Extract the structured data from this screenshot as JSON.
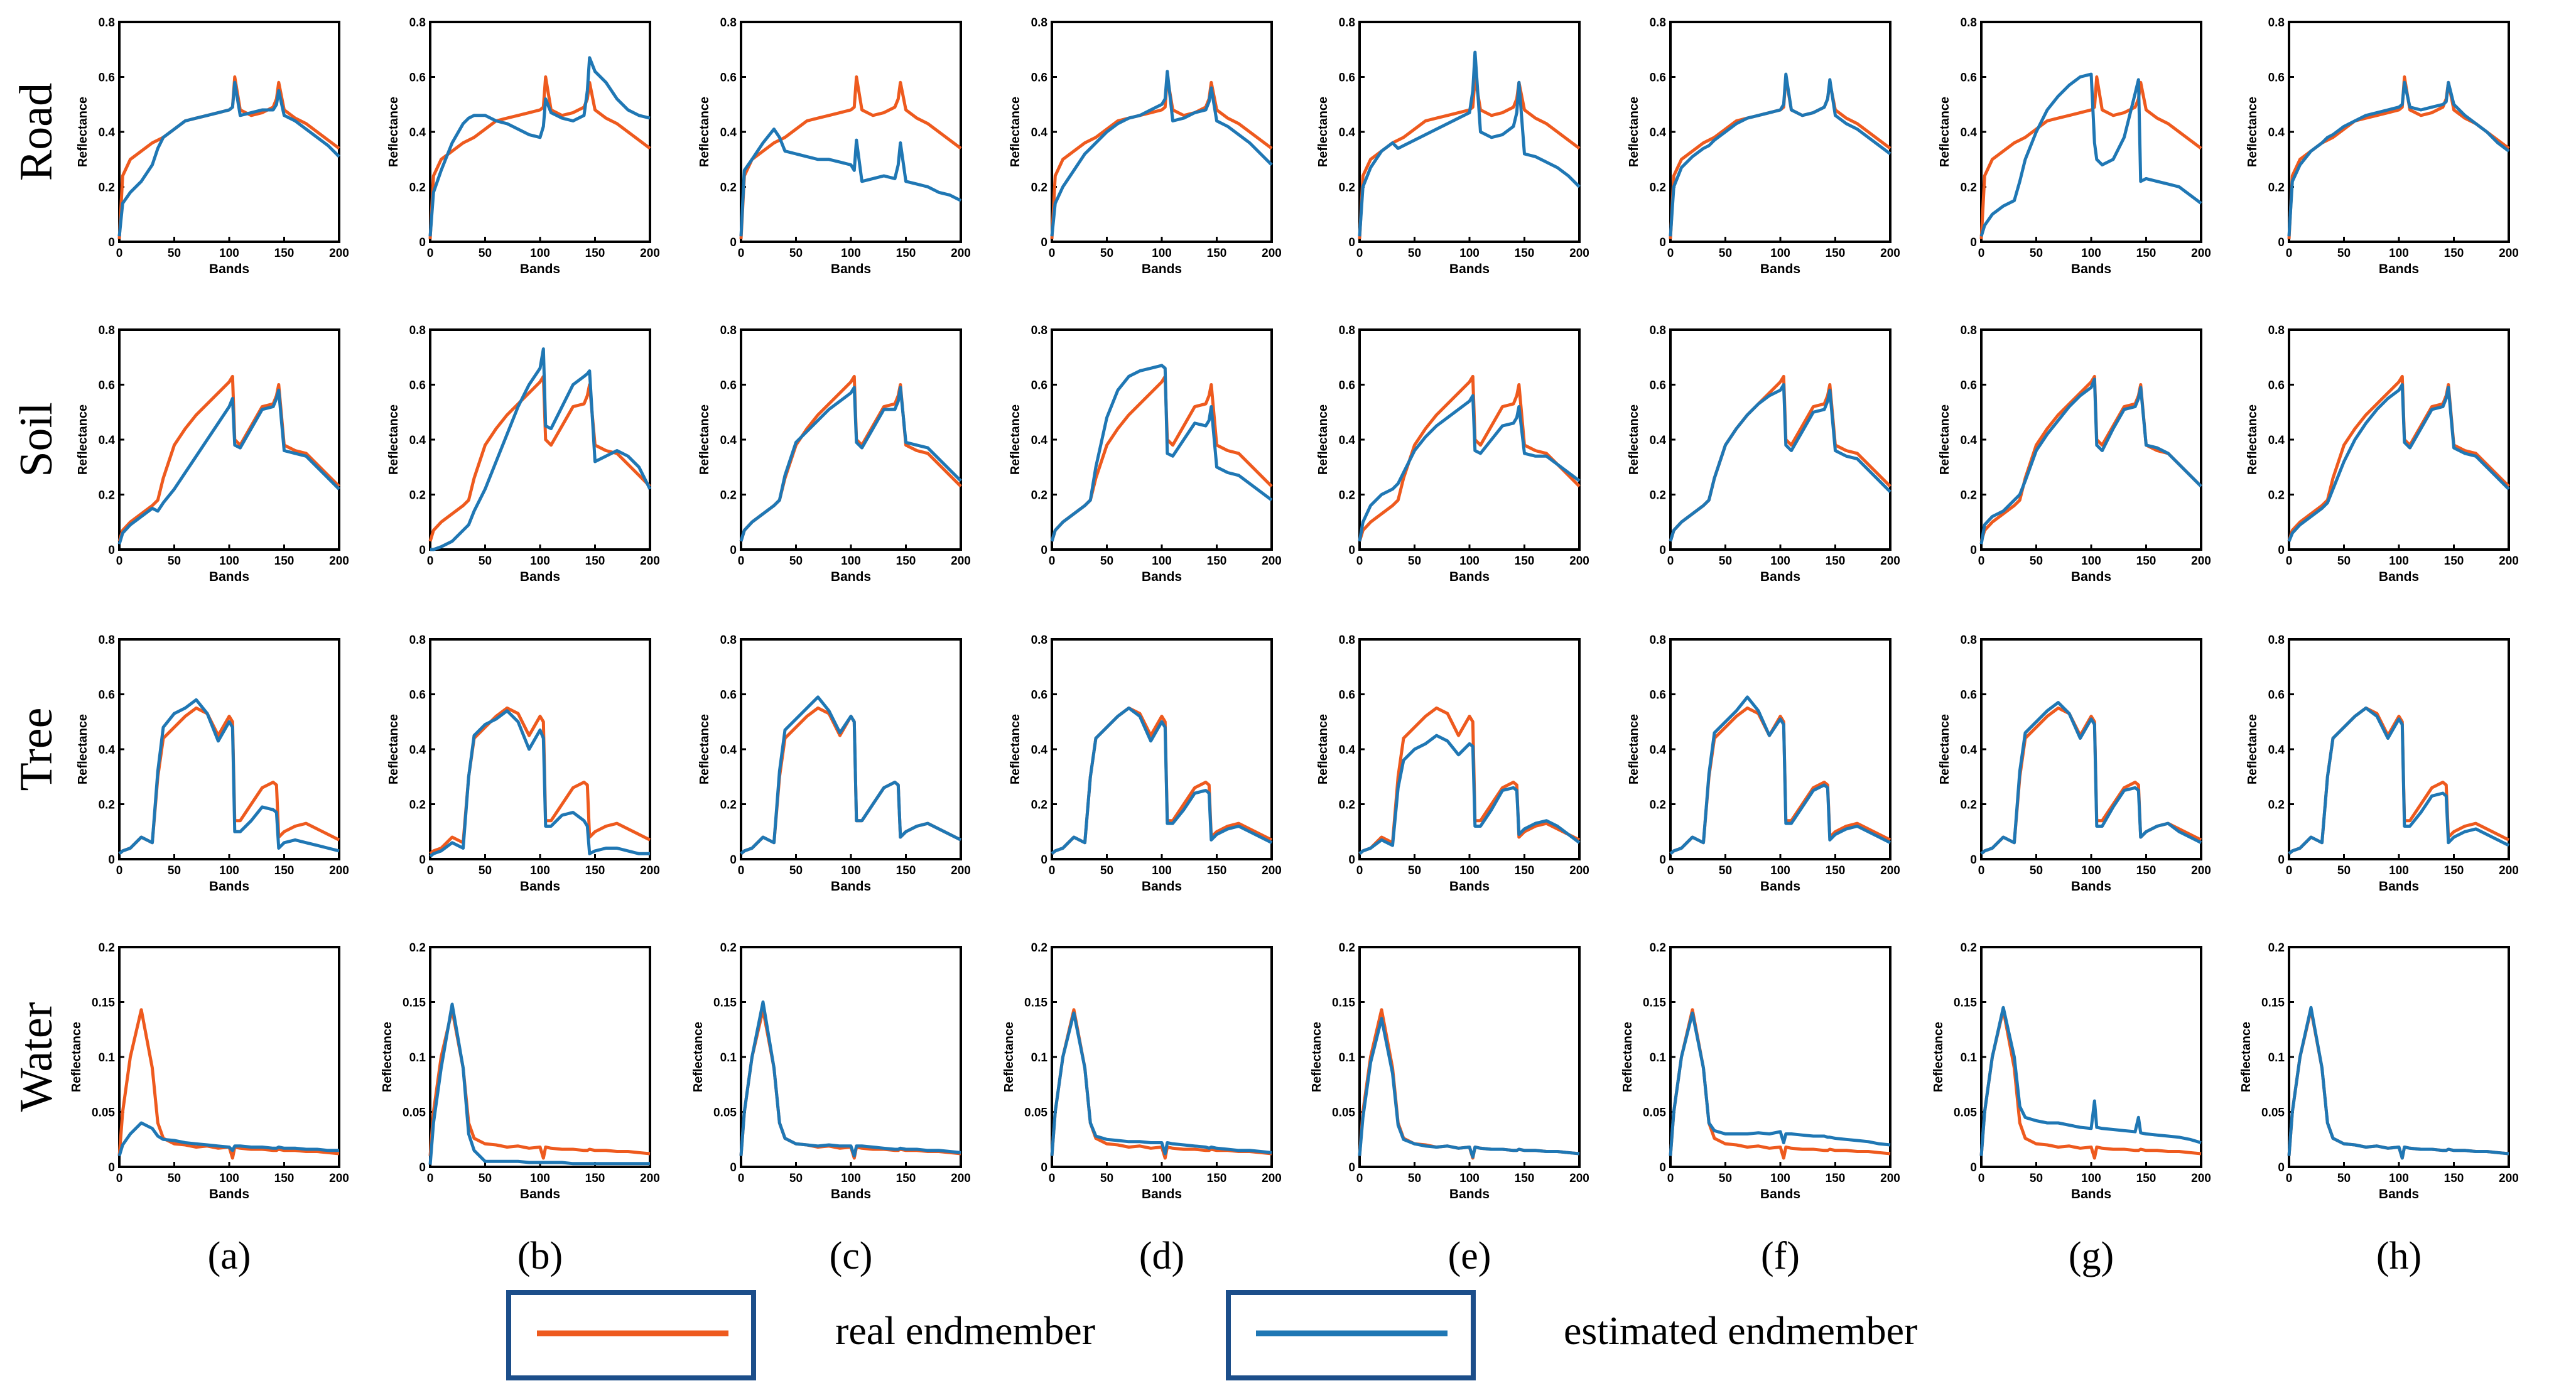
{
  "colors": {
    "real": "#EE5A1E",
    "estimated": "#1F77B4",
    "legend_border": "#1C4E8A",
    "axis": "#000000"
  },
  "legend": {
    "real_label": "real endmember",
    "estimated_label": "estimated endmember"
  },
  "column_labels": [
    "(a)",
    "(b)",
    "(c)",
    "(d)",
    "(e)",
    "(f)",
    "(g)",
    "(h)"
  ],
  "chart_data": {
    "type": "line",
    "layout": "grid 4 rows x 8 columns of line plots",
    "xlabel": "Bands",
    "ylabel": "Reflectance",
    "xlim": [
      0,
      200
    ],
    "xticks": [
      0,
      50,
      100,
      150,
      200
    ],
    "rows": [
      {
        "name": "Road",
        "ylim": [
          0,
          0.8
        ],
        "yticks": [
          0,
          0.2,
          0.4,
          0.6,
          0.8
        ],
        "ytick_labels": [
          "0",
          "0.2",
          "0.4",
          "0.6",
          "0.8"
        ]
      },
      {
        "name": "Soil",
        "ylim": [
          0,
          0.8
        ],
        "yticks": [
          0,
          0.2,
          0.4,
          0.6,
          0.8
        ],
        "ytick_labels": [
          "0",
          "0.2",
          "0.4",
          "0.6",
          "0.8"
        ]
      },
      {
        "name": "Tree",
        "ylim": [
          0,
          0.8
        ],
        "yticks": [
          0,
          0.2,
          0.4,
          0.6,
          0.8
        ],
        "ytick_labels": [
          "0",
          "0.2",
          "0.4",
          "0.6",
          "0.8"
        ]
      },
      {
        "name": "Water",
        "ylim": [
          0,
          0.2
        ],
        "yticks": [
          0,
          0.05,
          0.1,
          0.15,
          0.2
        ],
        "ytick_labels": [
          "0",
          "0.05",
          "0.1",
          "0.15",
          "0.2"
        ]
      }
    ],
    "x": [
      0,
      3,
      10,
      20,
      30,
      35,
      40,
      50,
      60,
      70,
      80,
      90,
      100,
      103,
      105,
      110,
      120,
      130,
      140,
      143,
      145,
      150,
      160,
      170,
      180,
      190,
      200
    ],
    "real": {
      "Road": [
        0.01,
        0.24,
        0.3,
        0.33,
        0.36,
        0.37,
        0.38,
        0.41,
        0.44,
        0.45,
        0.46,
        0.47,
        0.48,
        0.49,
        0.6,
        0.48,
        0.46,
        0.47,
        0.49,
        0.52,
        0.58,
        0.48,
        0.45,
        0.43,
        0.4,
        0.37,
        0.34
      ],
      "Soil": [
        0.03,
        0.07,
        0.1,
        0.13,
        0.16,
        0.18,
        0.26,
        0.38,
        0.44,
        0.49,
        0.53,
        0.57,
        0.61,
        0.63,
        0.4,
        0.38,
        0.45,
        0.52,
        0.53,
        0.56,
        0.6,
        0.38,
        0.36,
        0.35,
        0.31,
        0.27,
        0.23
      ],
      "Tree": [
        0.02,
        0.03,
        0.04,
        0.08,
        0.06,
        0.3,
        0.44,
        0.48,
        0.52,
        0.55,
        0.53,
        0.45,
        0.52,
        0.5,
        0.14,
        0.14,
        0.2,
        0.26,
        0.28,
        0.27,
        0.08,
        0.1,
        0.12,
        0.13,
        0.11,
        0.09,
        0.07
      ],
      "Water": [
        0.01,
        0.05,
        0.1,
        0.143,
        0.09,
        0.04,
        0.026,
        0.021,
        0.02,
        0.018,
        0.019,
        0.017,
        0.018,
        0.008,
        0.018,
        0.017,
        0.016,
        0.016,
        0.015,
        0.015,
        0.016,
        0.015,
        0.015,
        0.014,
        0.014,
        0.013,
        0.012
      ]
    },
    "estimated": [
      {
        "Road": [
          0.02,
          0.14,
          0.18,
          0.22,
          0.28,
          0.34,
          0.38,
          0.41,
          0.44,
          0.45,
          0.46,
          0.47,
          0.48,
          0.49,
          0.58,
          0.46,
          0.47,
          0.48,
          0.48,
          0.5,
          0.55,
          0.46,
          0.44,
          0.41,
          0.38,
          0.35,
          0.31
        ],
        "Soil": [
          0.02,
          0.06,
          0.09,
          0.12,
          0.15,
          0.14,
          0.17,
          0.22,
          0.28,
          0.34,
          0.4,
          0.46,
          0.52,
          0.55,
          0.38,
          0.37,
          0.44,
          0.51,
          0.52,
          0.55,
          0.58,
          0.36,
          0.35,
          0.34,
          0.3,
          0.26,
          0.22
        ],
        "Tree": [
          0.02,
          0.03,
          0.04,
          0.08,
          0.06,
          0.32,
          0.48,
          0.53,
          0.55,
          0.58,
          0.53,
          0.43,
          0.5,
          0.48,
          0.1,
          0.1,
          0.14,
          0.19,
          0.18,
          0.17,
          0.04,
          0.06,
          0.07,
          0.06,
          0.05,
          0.04,
          0.03
        ],
        "Water": [
          0.01,
          0.02,
          0.03,
          0.04,
          0.035,
          0.028,
          0.025,
          0.024,
          0.022,
          0.021,
          0.02,
          0.019,
          0.018,
          0.015,
          0.019,
          0.019,
          0.018,
          0.018,
          0.017,
          0.017,
          0.018,
          0.017,
          0.017,
          0.016,
          0.016,
          0.015,
          0.015
        ]
      },
      {
        "Road": [
          0.02,
          0.18,
          0.26,
          0.36,
          0.43,
          0.45,
          0.46,
          0.46,
          0.44,
          0.43,
          0.41,
          0.39,
          0.38,
          0.42,
          0.52,
          0.47,
          0.45,
          0.44,
          0.46,
          0.55,
          0.67,
          0.62,
          0.58,
          0.52,
          0.48,
          0.46,
          0.45
        ],
        "Soil": [
          0.0,
          0.0,
          0.01,
          0.03,
          0.07,
          0.09,
          0.14,
          0.22,
          0.32,
          0.42,
          0.52,
          0.6,
          0.66,
          0.73,
          0.45,
          0.44,
          0.52,
          0.6,
          0.63,
          0.64,
          0.65,
          0.32,
          0.34,
          0.36,
          0.34,
          0.3,
          0.22
        ],
        "Tree": [
          0.01,
          0.02,
          0.03,
          0.06,
          0.04,
          0.3,
          0.45,
          0.49,
          0.51,
          0.54,
          0.5,
          0.4,
          0.47,
          0.44,
          0.12,
          0.12,
          0.16,
          0.17,
          0.14,
          0.12,
          0.02,
          0.03,
          0.04,
          0.04,
          0.03,
          0.02,
          0.02
        ],
        "Water": [
          0.002,
          0.04,
          0.09,
          0.148,
          0.09,
          0.03,
          0.015,
          0.005,
          0.005,
          0.005,
          0.005,
          0.004,
          0.004,
          0.004,
          0.004,
          0.004,
          0.004,
          0.003,
          0.003,
          0.003,
          0.003,
          0.003,
          0.003,
          0.003,
          0.003,
          0.003,
          0.003
        ]
      },
      {
        "Road": [
          0.02,
          0.26,
          0.3,
          0.36,
          0.41,
          0.38,
          0.33,
          0.32,
          0.31,
          0.3,
          0.3,
          0.29,
          0.28,
          0.26,
          0.37,
          0.22,
          0.23,
          0.24,
          0.23,
          0.28,
          0.36,
          0.22,
          0.21,
          0.2,
          0.18,
          0.17,
          0.15
        ],
        "Soil": [
          0.03,
          0.07,
          0.1,
          0.13,
          0.16,
          0.18,
          0.27,
          0.39,
          0.43,
          0.47,
          0.51,
          0.54,
          0.57,
          0.59,
          0.39,
          0.37,
          0.44,
          0.51,
          0.51,
          0.54,
          0.59,
          0.39,
          0.38,
          0.37,
          0.33,
          0.29,
          0.25
        ],
        "Tree": [
          0.02,
          0.03,
          0.04,
          0.08,
          0.06,
          0.32,
          0.47,
          0.51,
          0.55,
          0.59,
          0.54,
          0.46,
          0.52,
          0.5,
          0.14,
          0.14,
          0.2,
          0.26,
          0.28,
          0.27,
          0.08,
          0.1,
          0.12,
          0.13,
          0.11,
          0.09,
          0.07
        ],
        "Water": [
          0.01,
          0.05,
          0.1,
          0.15,
          0.09,
          0.04,
          0.026,
          0.021,
          0.02,
          0.019,
          0.02,
          0.019,
          0.019,
          0.01,
          0.019,
          0.019,
          0.018,
          0.017,
          0.016,
          0.016,
          0.017,
          0.016,
          0.016,
          0.015,
          0.015,
          0.014,
          0.013
        ]
      },
      {
        "Road": [
          0.02,
          0.14,
          0.2,
          0.26,
          0.32,
          0.34,
          0.36,
          0.4,
          0.43,
          0.45,
          0.46,
          0.48,
          0.5,
          0.52,
          0.62,
          0.44,
          0.45,
          0.47,
          0.48,
          0.51,
          0.56,
          0.44,
          0.42,
          0.39,
          0.36,
          0.32,
          0.28
        ],
        "Soil": [
          0.03,
          0.07,
          0.1,
          0.13,
          0.16,
          0.18,
          0.3,
          0.48,
          0.58,
          0.63,
          0.65,
          0.66,
          0.67,
          0.66,
          0.35,
          0.34,
          0.4,
          0.46,
          0.45,
          0.47,
          0.52,
          0.3,
          0.28,
          0.27,
          0.24,
          0.21,
          0.18
        ],
        "Tree": [
          0.02,
          0.03,
          0.04,
          0.08,
          0.06,
          0.3,
          0.44,
          0.48,
          0.52,
          0.55,
          0.52,
          0.43,
          0.5,
          0.48,
          0.13,
          0.13,
          0.18,
          0.24,
          0.25,
          0.24,
          0.07,
          0.09,
          0.11,
          0.12,
          0.1,
          0.08,
          0.06
        ],
        "Water": [
          0.01,
          0.05,
          0.1,
          0.14,
          0.09,
          0.04,
          0.028,
          0.025,
          0.024,
          0.023,
          0.023,
          0.022,
          0.022,
          0.012,
          0.022,
          0.021,
          0.02,
          0.019,
          0.018,
          0.017,
          0.018,
          0.017,
          0.016,
          0.015,
          0.015,
          0.014,
          0.013
        ]
      },
      {
        "Road": [
          0.02,
          0.2,
          0.27,
          0.33,
          0.36,
          0.34,
          0.35,
          0.37,
          0.39,
          0.41,
          0.43,
          0.45,
          0.47,
          0.55,
          0.69,
          0.4,
          0.38,
          0.39,
          0.42,
          0.47,
          0.58,
          0.32,
          0.31,
          0.29,
          0.27,
          0.24,
          0.2
        ],
        "Soil": [
          0.03,
          0.1,
          0.16,
          0.2,
          0.22,
          0.24,
          0.28,
          0.36,
          0.41,
          0.45,
          0.48,
          0.51,
          0.54,
          0.56,
          0.36,
          0.35,
          0.4,
          0.45,
          0.46,
          0.48,
          0.52,
          0.35,
          0.34,
          0.34,
          0.31,
          0.28,
          0.25
        ],
        "Tree": [
          0.02,
          0.03,
          0.04,
          0.07,
          0.05,
          0.26,
          0.36,
          0.4,
          0.42,
          0.45,
          0.43,
          0.38,
          0.42,
          0.41,
          0.12,
          0.12,
          0.18,
          0.25,
          0.26,
          0.25,
          0.09,
          0.11,
          0.13,
          0.14,
          0.12,
          0.09,
          0.06
        ],
        "Water": [
          0.01,
          0.045,
          0.095,
          0.135,
          0.085,
          0.038,
          0.025,
          0.021,
          0.019,
          0.018,
          0.019,
          0.017,
          0.018,
          0.009,
          0.018,
          0.017,
          0.016,
          0.016,
          0.015,
          0.015,
          0.016,
          0.015,
          0.015,
          0.014,
          0.014,
          0.013,
          0.012
        ]
      },
      {
        "Road": [
          0.02,
          0.2,
          0.27,
          0.31,
          0.34,
          0.35,
          0.37,
          0.4,
          0.43,
          0.45,
          0.46,
          0.47,
          0.48,
          0.5,
          0.61,
          0.48,
          0.46,
          0.47,
          0.49,
          0.52,
          0.59,
          0.46,
          0.43,
          0.41,
          0.38,
          0.35,
          0.32
        ],
        "Soil": [
          0.03,
          0.07,
          0.1,
          0.13,
          0.16,
          0.18,
          0.26,
          0.38,
          0.44,
          0.49,
          0.53,
          0.56,
          0.58,
          0.6,
          0.38,
          0.36,
          0.43,
          0.5,
          0.51,
          0.54,
          0.58,
          0.36,
          0.34,
          0.33,
          0.29,
          0.25,
          0.21
        ],
        "Tree": [
          0.02,
          0.03,
          0.04,
          0.08,
          0.06,
          0.31,
          0.46,
          0.5,
          0.54,
          0.59,
          0.54,
          0.45,
          0.51,
          0.49,
          0.13,
          0.13,
          0.19,
          0.25,
          0.27,
          0.26,
          0.07,
          0.09,
          0.11,
          0.12,
          0.1,
          0.08,
          0.06
        ],
        "Water": [
          0.01,
          0.05,
          0.1,
          0.14,
          0.09,
          0.04,
          0.033,
          0.03,
          0.03,
          0.03,
          0.031,
          0.03,
          0.032,
          0.022,
          0.03,
          0.03,
          0.029,
          0.028,
          0.028,
          0.027,
          0.027,
          0.026,
          0.025,
          0.024,
          0.023,
          0.021,
          0.02
        ]
      },
      {
        "Road": [
          0.02,
          0.06,
          0.1,
          0.13,
          0.15,
          0.22,
          0.3,
          0.4,
          0.48,
          0.53,
          0.57,
          0.6,
          0.61,
          0.36,
          0.3,
          0.28,
          0.3,
          0.38,
          0.54,
          0.59,
          0.22,
          0.23,
          0.22,
          0.21,
          0.2,
          0.17,
          0.14
        ],
        "Soil": [
          0.02,
          0.09,
          0.12,
          0.14,
          0.18,
          0.2,
          0.25,
          0.36,
          0.42,
          0.47,
          0.52,
          0.56,
          0.59,
          0.62,
          0.38,
          0.36,
          0.44,
          0.51,
          0.52,
          0.55,
          0.59,
          0.38,
          0.37,
          0.35,
          0.31,
          0.27,
          0.23
        ],
        "Tree": [
          0.02,
          0.03,
          0.04,
          0.08,
          0.06,
          0.32,
          0.46,
          0.5,
          0.54,
          0.57,
          0.53,
          0.44,
          0.51,
          0.49,
          0.12,
          0.12,
          0.19,
          0.25,
          0.26,
          0.25,
          0.08,
          0.1,
          0.12,
          0.13,
          0.1,
          0.08,
          0.06
        ],
        "Water": [
          0.01,
          0.05,
          0.1,
          0.145,
          0.1,
          0.055,
          0.045,
          0.042,
          0.04,
          0.04,
          0.038,
          0.036,
          0.035,
          0.06,
          0.036,
          0.035,
          0.034,
          0.033,
          0.032,
          0.045,
          0.031,
          0.03,
          0.029,
          0.028,
          0.027,
          0.025,
          0.022
        ]
      },
      {
        "Road": [
          0.02,
          0.22,
          0.28,
          0.33,
          0.36,
          0.38,
          0.39,
          0.42,
          0.44,
          0.46,
          0.47,
          0.48,
          0.49,
          0.5,
          0.58,
          0.49,
          0.48,
          0.49,
          0.5,
          0.51,
          0.58,
          0.5,
          0.46,
          0.43,
          0.4,
          0.36,
          0.33
        ],
        "Soil": [
          0.03,
          0.06,
          0.09,
          0.12,
          0.15,
          0.17,
          0.22,
          0.32,
          0.4,
          0.46,
          0.51,
          0.55,
          0.58,
          0.6,
          0.39,
          0.37,
          0.44,
          0.51,
          0.52,
          0.55,
          0.59,
          0.37,
          0.35,
          0.34,
          0.3,
          0.26,
          0.22
        ],
        "Tree": [
          0.02,
          0.03,
          0.04,
          0.08,
          0.06,
          0.3,
          0.44,
          0.48,
          0.52,
          0.55,
          0.52,
          0.44,
          0.51,
          0.49,
          0.12,
          0.12,
          0.17,
          0.23,
          0.24,
          0.23,
          0.06,
          0.08,
          0.1,
          0.11,
          0.09,
          0.07,
          0.05
        ],
        "Water": [
          0.01,
          0.05,
          0.1,
          0.145,
          0.09,
          0.04,
          0.026,
          0.021,
          0.02,
          0.018,
          0.019,
          0.017,
          0.018,
          0.008,
          0.018,
          0.017,
          0.016,
          0.016,
          0.015,
          0.015,
          0.016,
          0.015,
          0.015,
          0.014,
          0.014,
          0.013,
          0.012
        ]
      }
    ]
  }
}
